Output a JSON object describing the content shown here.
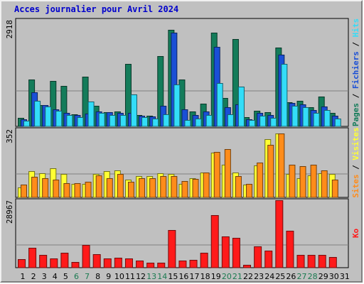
{
  "title": "Acces journalier pour Avril 2024",
  "colors": {
    "pages": "#147c5a",
    "fichiers": "#1a4fd6",
    "hits": "#33ddf8",
    "visites": "#ffff33",
    "sites": "#ff8c1a",
    "ko": "#ff1a1a",
    "background": "#c0c0c0",
    "weekend_label": "#1a7a50",
    "weekday_label": "#000000"
  },
  "chart_data": [
    {
      "type": "bar",
      "name": "hits-files-pages",
      "categories": [
        "1",
        "2",
        "3",
        "4",
        "5",
        "6",
        "7",
        "8",
        "9",
        "10",
        "11",
        "12",
        "13",
        "14",
        "15",
        "16",
        "17",
        "18",
        "19",
        "20",
        "21",
        "22",
        "23",
        "24",
        "25",
        "26",
        "27",
        "28",
        "29",
        "30",
        "31"
      ],
      "weekend_days": [
        "6",
        "7",
        "13",
        "14",
        "20",
        "21",
        "27",
        "28"
      ],
      "ymax_label": "2918",
      "ylim": [
        0,
        2918
      ],
      "right_axis_labels": [
        "Pages",
        "Fichiers",
        "Hits"
      ],
      "series": [
        {
          "name": "Pages",
          "values": [
            240,
            1290,
            580,
            1240,
            1110,
            340,
            1370,
            560,
            380,
            400,
            1710,
            320,
            300,
            1930,
            2650,
            1280,
            400,
            630,
            2570,
            770,
            2390,
            250,
            420,
            390,
            2160,
            660,
            700,
            520,
            820,
            370,
            0
          ]
        },
        {
          "name": "Fichiers",
          "values": [
            200,
            930,
            590,
            460,
            370,
            320,
            350,
            410,
            380,
            370,
            370,
            290,
            270,
            560,
            2560,
            470,
            320,
            410,
            2180,
            520,
            600,
            200,
            360,
            310,
            1960,
            650,
            600,
            450,
            540,
            290,
            0
          ]
        },
        {
          "name": "Hits",
          "values": [
            150,
            700,
            550,
            430,
            310,
            250,
            680,
            360,
            310,
            310,
            870,
            250,
            220,
            330,
            1150,
            180,
            210,
            310,
            1180,
            330,
            1090,
            170,
            290,
            230,
            1710,
            560,
            520,
            370,
            450,
            220,
            0
          ]
        }
      ]
    },
    {
      "type": "bar",
      "name": "visits-sites",
      "categories": [
        "1",
        "2",
        "3",
        "4",
        "5",
        "6",
        "7",
        "8",
        "9",
        "10",
        "11",
        "12",
        "13",
        "14",
        "15",
        "16",
        "17",
        "18",
        "19",
        "20",
        "21",
        "22",
        "23",
        "24",
        "25",
        "26",
        "27",
        "28",
        "29",
        "30",
        "31"
      ],
      "ymax_label": "352",
      "ylim": [
        0,
        352
      ],
      "right_axis_labels": [
        "Sites",
        "Visites"
      ],
      "series": [
        {
          "name": "Visites",
          "values": [
            50,
            135,
            125,
            150,
            120,
            70,
            70,
            120,
            135,
            140,
            90,
            110,
            110,
            125,
            120,
            70,
            100,
            130,
            230,
            170,
            130,
            65,
            165,
            300,
            330,
            120,
            100,
            115,
            125,
            120,
            0
          ]
        },
        {
          "name": "Sites",
          "values": [
            65,
            105,
            100,
            90,
            75,
            75,
            80,
            115,
            100,
            120,
            80,
            100,
            100,
            110,
            110,
            85,
            95,
            130,
            235,
            250,
            110,
            70,
            180,
            270,
            330,
            170,
            160,
            170,
            140,
            90,
            0
          ]
        }
      ]
    },
    {
      "type": "bar",
      "name": "kilobytes",
      "categories": [
        "1",
        "2",
        "3",
        "4",
        "5",
        "6",
        "7",
        "8",
        "9",
        "10",
        "11",
        "12",
        "13",
        "14",
        "15",
        "16",
        "17",
        "18",
        "19",
        "20",
        "21",
        "22",
        "23",
        "24",
        "25",
        "26",
        "27",
        "28",
        "29",
        "30",
        "31"
      ],
      "ymax_label": "28967",
      "ylim": [
        0,
        28967
      ],
      "right_axis_labels": [
        "Ko"
      ],
      "series": [
        {
          "name": "Ko",
          "values": [
            3600,
            8600,
            5600,
            4000,
            6500,
            2300,
            9800,
            5900,
            4100,
            4200,
            4100,
            3100,
            2100,
            2100,
            16300,
            3200,
            3300,
            6400,
            22600,
            13300,
            12800,
            1300,
            9200,
            7200,
            28967,
            15800,
            5600,
            5600,
            5600,
            4500,
            0
          ]
        }
      ]
    }
  ]
}
